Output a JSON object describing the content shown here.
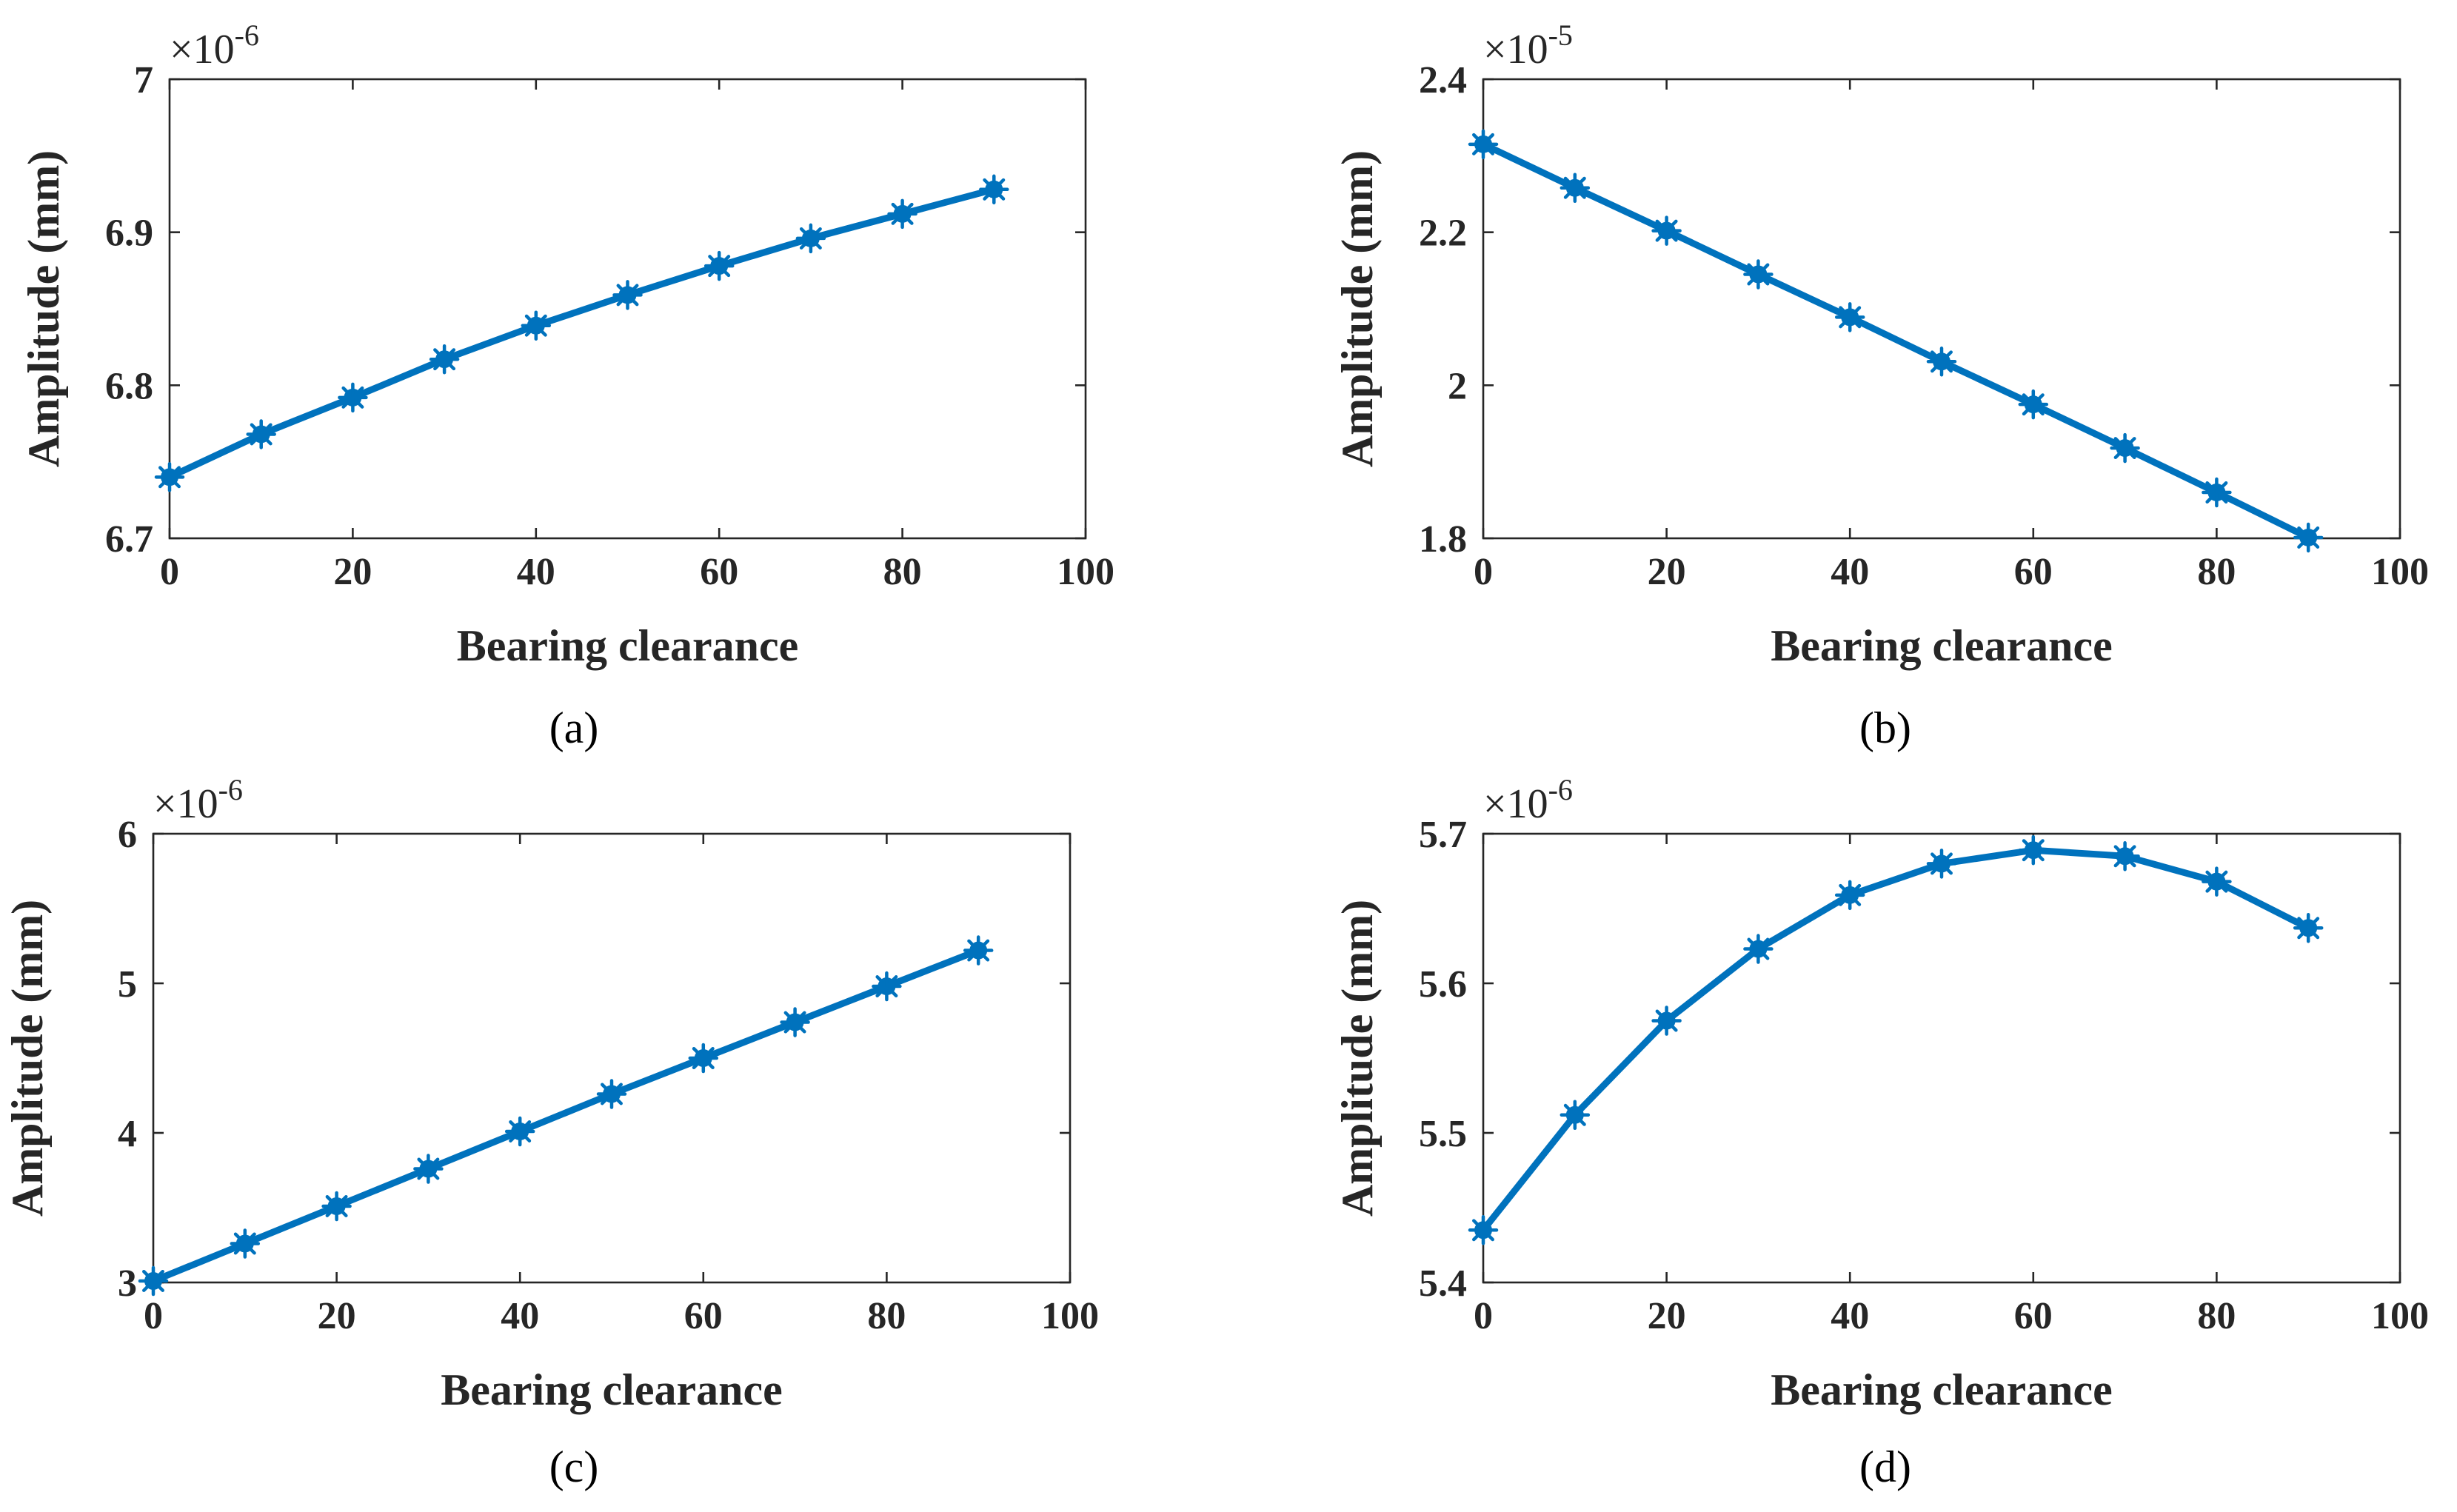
{
  "colors": {
    "series": "#0072BD",
    "axes": "#262626"
  },
  "chart_data": [
    {
      "type": "line",
      "caption": "(a)",
      "xlabel": "Bearing clearance",
      "ylabel": "Amplitude  (mm)",
      "exponent_base": "×10",
      "exponent_power": "-6",
      "xlim": [
        0,
        100
      ],
      "ylim": [
        6.7,
        7.0
      ],
      "xticks": [
        0,
        20,
        40,
        60,
        80,
        100
      ],
      "xtick_labels": [
        "0",
        "20",
        "40",
        "60",
        "80",
        "100"
      ],
      "yticks": [
        6.7,
        6.8,
        6.9,
        7.0
      ],
      "ytick_labels": [
        "6.7",
        "6.8",
        "6.9",
        "7"
      ],
      "x": [
        0,
        10,
        20,
        30,
        40,
        50,
        60,
        70,
        80,
        90
      ],
      "values": [
        6.74,
        6.768,
        6.792,
        6.817,
        6.839,
        6.859,
        6.878,
        6.896,
        6.912,
        6.928
      ],
      "marker": "asterisk"
    },
    {
      "type": "line",
      "caption": "(b)",
      "xlabel": "Bearing clearance",
      "ylabel": "Amplitude  (mm)",
      "exponent_base": "×10",
      "exponent_power": "-5",
      "xlim": [
        0,
        100
      ],
      "ylim": [
        1.8,
        2.4
      ],
      "xticks": [
        0,
        20,
        40,
        60,
        80,
        100
      ],
      "xtick_labels": [
        "0",
        "20",
        "40",
        "60",
        "80",
        "100"
      ],
      "yticks": [
        1.8,
        2.0,
        2.2,
        2.4
      ],
      "ytick_labels": [
        "1.8",
        "2",
        "2.2",
        "2.4"
      ],
      "x": [
        0,
        10,
        20,
        30,
        40,
        50,
        60,
        70,
        80,
        90
      ],
      "values": [
        2.315,
        2.258,
        2.202,
        2.145,
        2.089,
        2.031,
        1.975,
        1.918,
        1.86,
        1.801
      ],
      "marker": "asterisk"
    },
    {
      "type": "line",
      "caption": "(c)",
      "xlabel": "Bearing clearance",
      "ylabel": "Amplitude  (mm)",
      "exponent_base": "×10",
      "exponent_power": "-6",
      "xlim": [
        0,
        100
      ],
      "ylim": [
        3,
        6
      ],
      "xticks": [
        0,
        20,
        40,
        60,
        80,
        100
      ],
      "xtick_labels": [
        "0",
        "20",
        "40",
        "60",
        "80",
        "100"
      ],
      "yticks": [
        3,
        4,
        5,
        6
      ],
      "ytick_labels": [
        "3",
        "4",
        "5",
        "6"
      ],
      "x": [
        0,
        10,
        20,
        30,
        40,
        50,
        60,
        70,
        80,
        90
      ],
      "values": [
        3.01,
        3.26,
        3.51,
        3.76,
        4.01,
        4.26,
        4.5,
        4.74,
        4.98,
        5.22
      ],
      "marker": "asterisk"
    },
    {
      "type": "line",
      "caption": "(d)",
      "xlabel": "Bearing clearance",
      "ylabel": "Amplitude  (mm)",
      "exponent_base": "×10",
      "exponent_power": "-6",
      "xlim": [
        0,
        100
      ],
      "ylim": [
        5.4,
        5.7
      ],
      "xticks": [
        0,
        20,
        40,
        60,
        80,
        100
      ],
      "xtick_labels": [
        "0",
        "20",
        "40",
        "60",
        "80",
        "100"
      ],
      "yticks": [
        5.4,
        5.5,
        5.6,
        5.7
      ],
      "ytick_labels": [
        "5.4",
        "5.5",
        "5.6",
        "5.7"
      ],
      "x": [
        0,
        10,
        20,
        30,
        40,
        50,
        60,
        70,
        80,
        90
      ],
      "values": [
        5.435,
        5.512,
        5.575,
        5.623,
        5.659,
        5.68,
        5.689,
        5.685,
        5.668,
        5.637
      ],
      "marker": "asterisk"
    }
  ]
}
